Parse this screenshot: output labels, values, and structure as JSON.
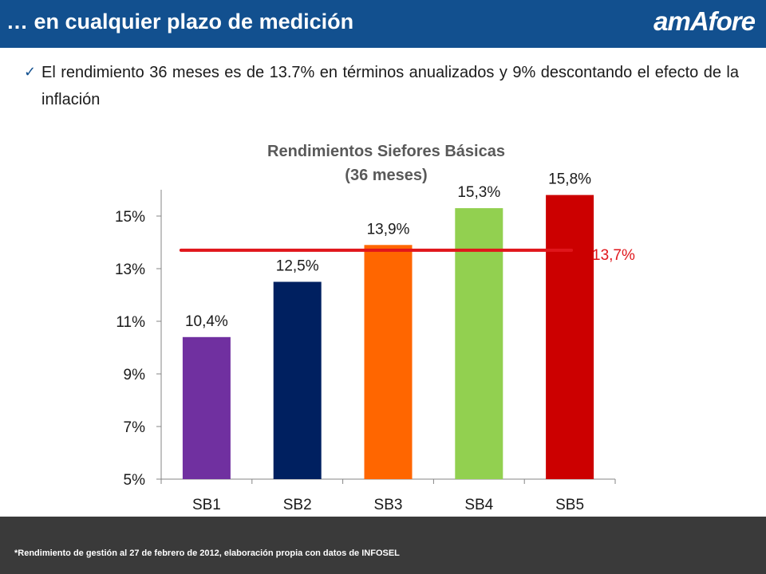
{
  "slide": {
    "title": "… en cualquier plazo de medición",
    "logo": "amAfore",
    "bullet_text": "El rendimiento 36 meses es de 13.7% en términos anualizados y 9% descontando el efecto de la inflación",
    "footnote": "*Rendimiento de gestión al 27 de febrero de 2012, elaboración propia con datos de INFOSEL"
  },
  "icons": {
    "bullet": "check-icon"
  },
  "colors": {
    "header_bg": "#12508f",
    "footer_bg": "#3a3a3a",
    "average_line": "#e0161b"
  },
  "chart_data": {
    "type": "bar",
    "title": "Rendimientos Siefores Básicas",
    "subtitle": "(36 meses)",
    "categories": [
      "SB1",
      "SB2",
      "SB3",
      "SB4",
      "SB5"
    ],
    "values": [
      10.4,
      12.5,
      13.9,
      15.3,
      15.8
    ],
    "data_labels": [
      "10,4%",
      "12,5%",
      "13,9%",
      "15,3%",
      "15,8%"
    ],
    "bar_colors": [
      "#7030a0",
      "#002060",
      "#ff6600",
      "#92d050",
      "#cc0000"
    ],
    "ylim": [
      5,
      16
    ],
    "yticks": [
      5,
      7,
      9,
      11,
      13,
      15
    ],
    "ytick_labels": [
      "5%",
      "7%",
      "9%",
      "11%",
      "13%",
      "15%"
    ],
    "reference_line": {
      "value": 13.7,
      "label": "13,7%",
      "color": "#e0161b"
    },
    "grid": false,
    "legend": "none"
  }
}
